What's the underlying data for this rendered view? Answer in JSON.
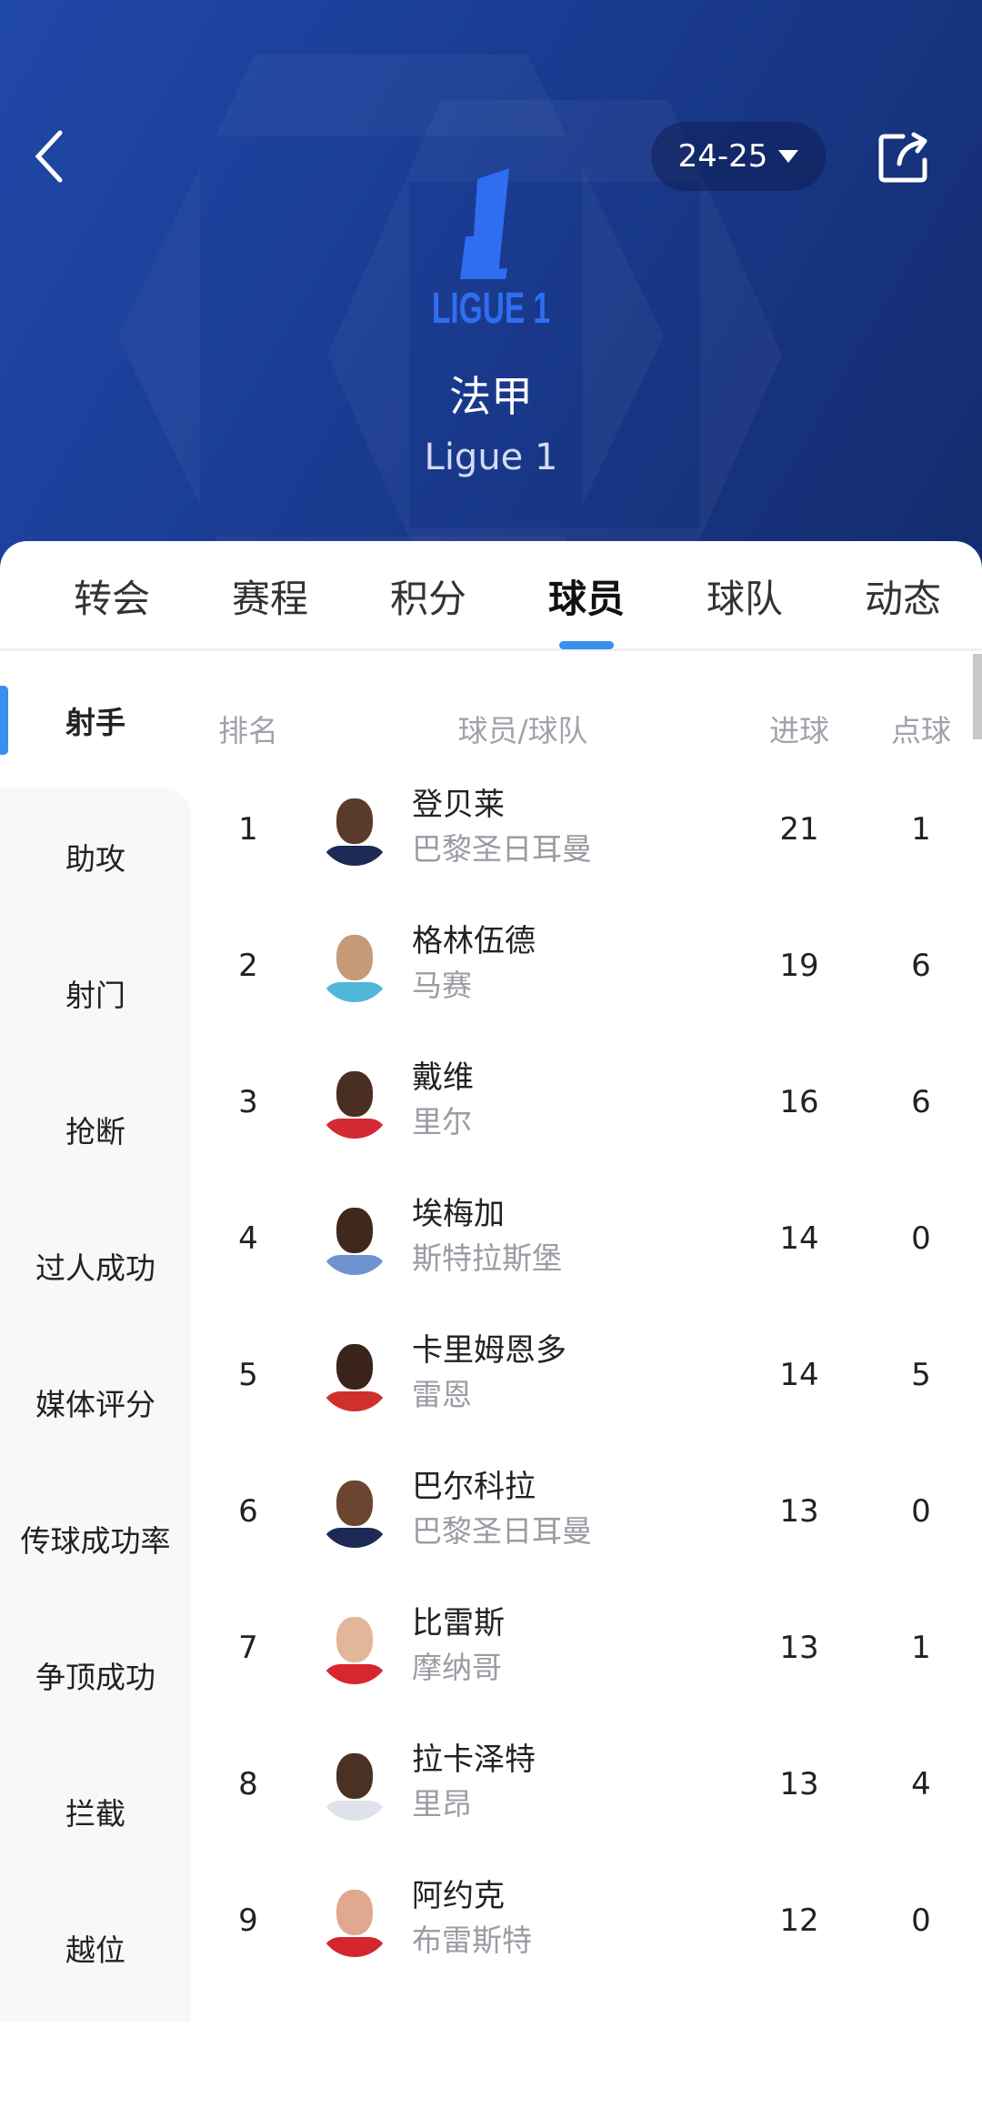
{
  "header": {
    "season": "24-25",
    "title": "法甲",
    "subtitle": "Ligue 1",
    "logo_text": "LIGUE 1"
  },
  "tabs": [
    {
      "label": "转会"
    },
    {
      "label": "赛程"
    },
    {
      "label": "积分"
    },
    {
      "label": "球员",
      "active": true
    },
    {
      "label": "球队"
    },
    {
      "label": "动态"
    }
  ],
  "sidebar": {
    "items": [
      {
        "label": "射手",
        "active": true
      },
      {
        "label": "助攻"
      },
      {
        "label": "射门"
      },
      {
        "label": "抢断"
      },
      {
        "label": "过人成功"
      },
      {
        "label": "媒体评分"
      },
      {
        "label": "传球成功率"
      },
      {
        "label": "争顶成功"
      },
      {
        "label": "拦截"
      },
      {
        "label": "越位"
      }
    ]
  },
  "table": {
    "headers": {
      "rank": "排名",
      "player": "球员/球队",
      "goals": "进球",
      "penalties": "点球"
    },
    "rows": [
      {
        "rank": "1",
        "name": "登贝莱",
        "team": "巴黎圣日耳曼",
        "goals": "21",
        "penalties": "1",
        "skin": "#5a3a2a",
        "shirt": "#1d2a55"
      },
      {
        "rank": "2",
        "name": "格林伍德",
        "team": "马赛",
        "goals": "19",
        "penalties": "6",
        "skin": "#c49a78",
        "shirt": "#4fb8d8"
      },
      {
        "rank": "3",
        "name": "戴维",
        "team": "里尔",
        "goals": "16",
        "penalties": "6",
        "skin": "#4a2e22",
        "shirt": "#d42a36"
      },
      {
        "rank": "4",
        "name": "埃梅加",
        "team": "斯特拉斯堡",
        "goals": "14",
        "penalties": "0",
        "skin": "#3f271c",
        "shirt": "#6f93d0"
      },
      {
        "rank": "5",
        "name": "卡里姆恩多",
        "team": "雷恩",
        "goals": "14",
        "penalties": "5",
        "skin": "#3a2419",
        "shirt": "#d0302a"
      },
      {
        "rank": "6",
        "name": "巴尔科拉",
        "team": "巴黎圣日耳曼",
        "goals": "13",
        "penalties": "0",
        "skin": "#6b4530",
        "shirt": "#1d2a55"
      },
      {
        "rank": "7",
        "name": "比雷斯",
        "team": "摩纳哥",
        "goals": "13",
        "penalties": "1",
        "skin": "#e2b69a",
        "shirt": "#d8262e"
      },
      {
        "rank": "8",
        "name": "拉卡泽特",
        "team": "里昂",
        "goals": "13",
        "penalties": "4",
        "skin": "#4b3024",
        "shirt": "#dfe2ea"
      },
      {
        "rank": "9",
        "name": "阿约克",
        "team": "布雷斯特",
        "goals": "12",
        "penalties": "0",
        "skin": "#e0a88e",
        "shirt": "#d3262e"
      },
      {
        "rank": "",
        "name": "",
        "team": "",
        "goals": "",
        "penalties": "",
        "skin": "#e6d3c6",
        "shirt": "#ffffff"
      }
    ]
  },
  "colors": {
    "accent": "#3a8ef0",
    "header_bg": "#1a3b91",
    "logo": "#2f6ef0"
  }
}
